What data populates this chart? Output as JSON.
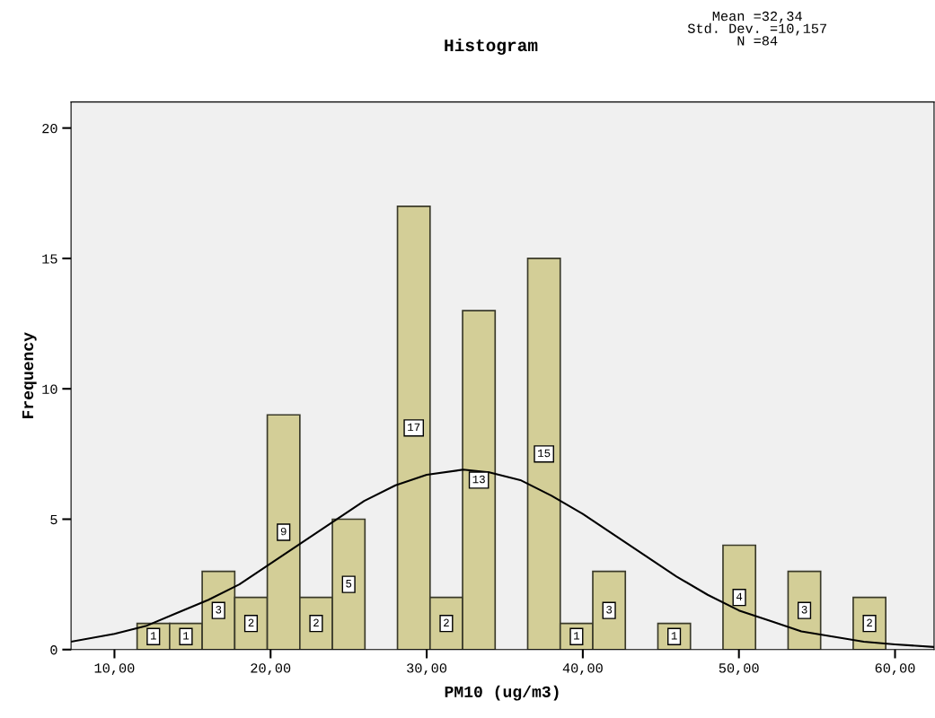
{
  "chart_data": {
    "type": "histogram",
    "title": "Histogram",
    "xlabel": "PM10 (ug/m3)",
    "ylabel": "Frequency",
    "annotations": [
      "Mean =32,34",
      "Std. Dev. =10,157",
      "N =84"
    ],
    "bins": [
      11.45,
      13.535,
      15.62,
      17.705,
      19.79,
      21.875,
      23.96,
      26.045,
      28.13,
      30.215,
      32.3,
      34.385,
      36.47,
      38.555,
      40.64,
      42.725,
      44.81,
      46.895,
      48.98,
      51.065,
      53.15,
      55.235,
      57.32,
      59.405
    ],
    "values": [
      1,
      1,
      3,
      2,
      9,
      2,
      5,
      0,
      17,
      2,
      13,
      0,
      15,
      1,
      3,
      0,
      1,
      0,
      4,
      0,
      3,
      0,
      2
    ],
    "color": "#d3ce97",
    "value_labels": [
      "1",
      "1",
      "3",
      "2",
      "9",
      "2",
      "5",
      null,
      "17",
      "2",
      "13",
      null,
      "15",
      "1",
      "3",
      null,
      "1",
      null,
      "4",
      null,
      "3",
      null,
      "2"
    ],
    "series": [
      {
        "type": "line",
        "color": "#000000",
        "x": [
          7.22,
          10,
          12,
          14,
          16,
          18,
          20,
          22,
          24,
          26,
          28,
          30,
          32.34,
          34,
          36,
          38,
          40,
          42,
          44,
          46,
          48,
          50,
          52,
          54,
          56,
          58,
          60,
          62.5
        ],
        "values": [
          0.3,
          0.6,
          0.9,
          1.4,
          1.9,
          2.5,
          3.3,
          4.1,
          4.9,
          5.7,
          6.3,
          6.7,
          6.9,
          6.8,
          6.5,
          5.9,
          5.2,
          4.4,
          3.6,
          2.8,
          2.1,
          1.5,
          1.1,
          0.7,
          0.5,
          0.3,
          0.2,
          0.1
        ]
      }
    ],
    "xlim": [
      7.22,
      62.5
    ],
    "ylim": [
      0,
      21
    ],
    "xticks": [
      {
        "value": 10,
        "label": "10,00"
      },
      {
        "value": 20,
        "label": "20,00"
      },
      {
        "value": 30,
        "label": "30,00"
      },
      {
        "value": 40,
        "label": "40,00"
      },
      {
        "value": 50,
        "label": "50,00"
      },
      {
        "value": 60,
        "label": "60,00"
      }
    ],
    "yticks": [
      0,
      5,
      10,
      15,
      20
    ],
    "grid": false,
    "legend": false
  }
}
